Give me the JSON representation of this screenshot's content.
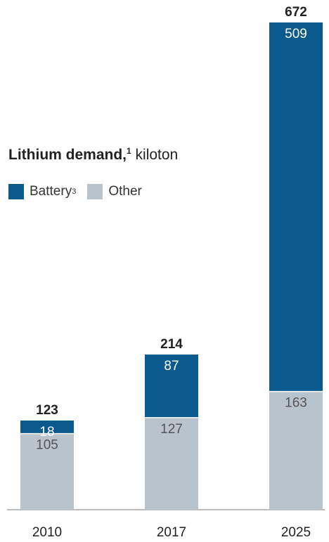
{
  "title": {
    "main": "Lithium demand,",
    "footnote": "1",
    "unit": "kiloton"
  },
  "legend": {
    "items": [
      {
        "label": "Battery",
        "footnote": "3",
        "color": "#0b5a8e"
      },
      {
        "label": "Other",
        "footnote": "",
        "color": "#b8c3cc"
      }
    ]
  },
  "chart_data": {
    "type": "bar",
    "stacked": true,
    "categories": [
      "2010",
      "2017",
      "2025"
    ],
    "series": [
      {
        "name": "Other",
        "values": [
          105,
          127,
          163
        ],
        "color": "#b8c3cc"
      },
      {
        "name": "Battery",
        "values": [
          18,
          87,
          509
        ],
        "color": "#0b5a8e"
      }
    ],
    "totals": [
      123,
      214,
      672
    ],
    "ylim": [
      0,
      672
    ],
    "grid": false,
    "legend_position": "top-left"
  }
}
